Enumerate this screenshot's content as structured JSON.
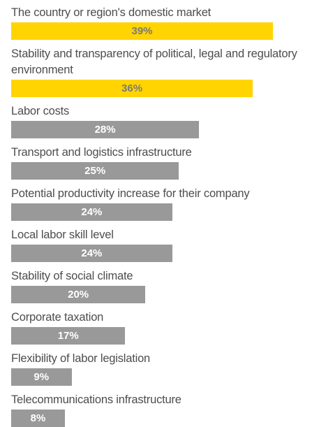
{
  "chart_data": {
    "type": "bar",
    "categories": [
      "The country or region's domestic market",
      "Stability and transparency of political, legal and regulatory environment",
      "Labor costs",
      "Transport and logistics infrastructure",
      "Potential productivity increase for their company",
      "Local labor skill level",
      "Stability of social climate",
      "Corporate taxation",
      "Flexibility of labor legislation",
      "Telecommunications infrastructure"
    ],
    "values": [
      39,
      36,
      28,
      25,
      24,
      24,
      20,
      17,
      9,
      8
    ],
    "value_labels": [
      "39%",
      "36%",
      "28%",
      "25%",
      "24%",
      "24%",
      "20%",
      "17%",
      "9%",
      "8%"
    ],
    "colors": [
      "#ffd400",
      "#ffd400",
      "#999999",
      "#999999",
      "#999999",
      "#999999",
      "#999999",
      "#999999",
      "#999999",
      "#999999"
    ]
  }
}
